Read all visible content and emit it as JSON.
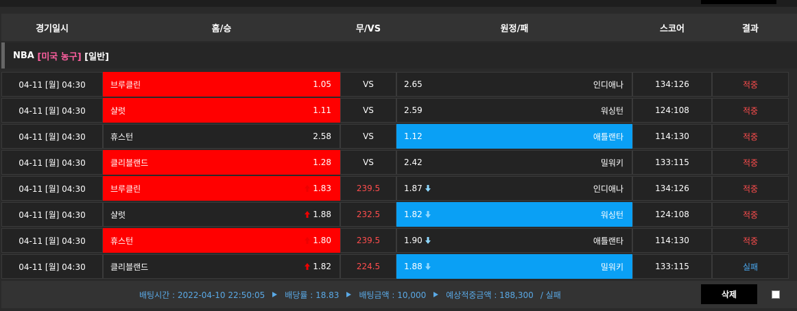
{
  "header": {
    "columns": [
      "경기일시",
      "홈/승",
      "무/VS",
      "원정/패",
      "스코어",
      "결과"
    ]
  },
  "league": {
    "name": "NBA",
    "country": "[미국 농구]",
    "kind": "[일반]"
  },
  "rows": [
    {
      "date": "04-11 [월] 04:30",
      "home": "브루클린",
      "home_odds": "1.05",
      "mid": "VS",
      "away_odds": "2.65",
      "away": "인디애나",
      "score": "134:126",
      "result": "적중",
      "pick": "home",
      "arrows": false,
      "result_color": "#ff4d4d"
    },
    {
      "date": "04-11 [월] 04:30",
      "home": "샬럿",
      "home_odds": "1.11",
      "mid": "VS",
      "away_odds": "2.59",
      "away": "워싱턴",
      "score": "124:108",
      "result": "적중",
      "pick": "home",
      "arrows": false,
      "result_color": "#ff4d4d"
    },
    {
      "date": "04-11 [월] 04:30",
      "home": "휴스턴",
      "home_odds": "2.58",
      "mid": "VS",
      "away_odds": "1.12",
      "away": "애틀랜타",
      "score": "114:130",
      "result": "적중",
      "pick": "away",
      "arrows": false,
      "result_color": "#ff4d4d"
    },
    {
      "date": "04-11 [월] 04:30",
      "home": "클리블랜드",
      "home_odds": "1.28",
      "mid": "VS",
      "away_odds": "2.42",
      "away": "밀워키",
      "score": "133:115",
      "result": "적중",
      "pick": "home",
      "arrows": false,
      "result_color": "#ff4d4d"
    },
    {
      "date": "04-11 [월] 04:30",
      "home": "브루클린",
      "home_odds": "1.83",
      "mid": "239.5",
      "away_odds": "1.87",
      "away": "인디애나",
      "score": "134:126",
      "result": "적중",
      "pick": "home",
      "arrows": true,
      "result_color": "#ff4d4d"
    },
    {
      "date": "04-11 [월] 04:30",
      "home": "샬럿",
      "home_odds": "1.88",
      "mid": "232.5",
      "away_odds": "1.82",
      "away": "워싱턴",
      "score": "124:108",
      "result": "적중",
      "pick": "away",
      "arrows": true,
      "result_color": "#ff4d4d"
    },
    {
      "date": "04-11 [월] 04:30",
      "home": "휴스턴",
      "home_odds": "1.80",
      "mid": "239.5",
      "away_odds": "1.90",
      "away": "애틀랜타",
      "score": "114:130",
      "result": "적중",
      "pick": "home",
      "arrows": true,
      "result_color": "#ff4d4d"
    },
    {
      "date": "04-11 [월] 04:30",
      "home": "클리블랜드",
      "home_odds": "1.82",
      "mid": "224.5",
      "away_odds": "1.88",
      "away": "밀워키",
      "score": "133:115",
      "result": "실패",
      "pick": "away",
      "arrows": true,
      "result_color": "#4aa8f0"
    }
  ],
  "footer": {
    "time": "배팅시간 : 2022-04-10 22:50:05",
    "rate": "배당률 : 18.83",
    "amount": "배팅금액 : 10,000",
    "expected": "예상적중금액 : 188,300",
    "status": "/ 실패"
  },
  "button": "삭제"
}
